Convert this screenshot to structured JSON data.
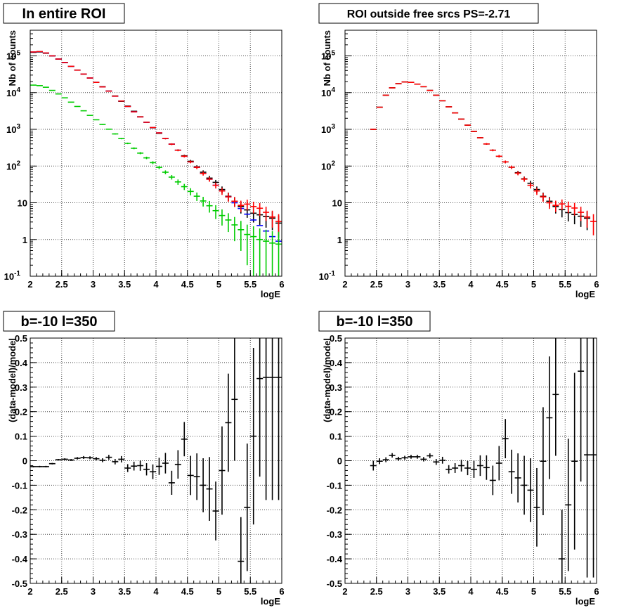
{
  "chart_data": [
    {
      "type": "scatter",
      "title": "In entire ROI",
      "xlabel": "logE",
      "ylabel": "Nb of counts",
      "xlim": [
        2,
        6
      ],
      "ylim": [
        0.1,
        500000
      ],
      "yscale": "log",
      "grid": true,
      "x_ticks": [
        "2",
        "2.5",
        "3",
        "3.5",
        "4",
        "4.5",
        "5",
        "5.5",
        "6"
      ],
      "y_ticks": [
        "10^-1",
        "1",
        "10",
        "10^2",
        "10^3",
        "10^4",
        "10^5"
      ],
      "series": [
        {
          "color": "#000000",
          "x": [
            2.05,
            2.15,
            2.25,
            2.35,
            2.45,
            2.55,
            2.65,
            2.75,
            2.85,
            2.95,
            3.05,
            3.15,
            3.25,
            3.35,
            3.45,
            3.55,
            3.65,
            3.75,
            3.85,
            3.95,
            4.05,
            4.15,
            4.25,
            4.35,
            4.45,
            4.55,
            4.65,
            4.75,
            4.85,
            4.95,
            5.05,
            5.15,
            5.25,
            5.35,
            5.45,
            5.55,
            5.65,
            5.75,
            5.85,
            5.95
          ],
          "y": [
            125000,
            128000,
            118000,
            100000,
            82000,
            66000,
            52000,
            41000,
            32000,
            25000,
            19000,
            14500,
            11000,
            8100,
            5800,
            4300,
            3100,
            2200,
            1560,
            1100,
            780,
            560,
            395,
            270,
            190,
            135,
            95,
            68,
            47,
            36,
            23,
            15,
            11,
            7.9,
            6.4,
            5.2,
            4.7,
            4.2,
            3.8,
            2.8
          ],
          "yerr": [
            350,
            360,
            340,
            320,
            290,
            260,
            230,
            200,
            180,
            160,
            140,
            120,
            105,
            90,
            76,
            66,
            56,
            47,
            40,
            33,
            28,
            24,
            20,
            16,
            14,
            12,
            10,
            8.3,
            6.9,
            6,
            4.8,
            3.9,
            3.3,
            2.8,
            2.5,
            2.3,
            2.2,
            2.1,
            2,
            1.7
          ]
        },
        {
          "color": "#0000ff",
          "x": [
            2.05,
            2.15,
            2.25,
            2.35,
            2.45,
            2.55,
            2.65,
            2.75,
            2.85,
            2.95,
            3.05,
            3.15,
            3.25,
            3.35,
            3.45,
            3.55,
            3.65,
            3.75,
            3.85,
            3.95,
            4.05,
            4.15,
            4.25,
            4.35,
            4.45,
            4.55,
            4.65,
            4.75,
            4.85,
            4.95,
            5.05,
            5.15,
            5.25,
            5.35,
            5.45,
            5.55,
            5.65,
            5.75,
            5.85,
            5.95
          ],
          "y": [
            128000,
            131000,
            120000,
            100000,
            82000,
            66000,
            52000,
            41000,
            32000,
            25000,
            19000,
            14300,
            11000,
            8000,
            5900,
            4200,
            3000,
            2180,
            1560,
            1120,
            800,
            560,
            395,
            270,
            185,
            130,
            92,
            63,
            44,
            30,
            21,
            14.5,
            10,
            7,
            4.9,
            3.4,
            2.4,
            1.7,
            1.2,
            0.9
          ],
          "yerr": [
            0,
            0,
            0,
            0,
            0,
            0,
            0,
            0,
            0,
            0,
            0,
            0,
            0,
            0,
            0,
            0,
            0,
            0,
            0,
            0,
            0,
            0,
            0,
            0,
            0,
            0,
            0,
            0,
            0,
            0,
            0,
            0,
            0,
            0,
            0,
            0,
            0,
            0,
            0,
            0
          ]
        },
        {
          "color": "#ff0000",
          "x": [
            2.05,
            2.15,
            2.25,
            2.35,
            2.45,
            2.55,
            2.65,
            2.75,
            2.85,
            2.95,
            3.05,
            3.15,
            3.25,
            3.35,
            3.45,
            3.55,
            3.65,
            3.75,
            3.85,
            3.95,
            4.05,
            4.15,
            4.25,
            4.35,
            4.45,
            4.55,
            4.65,
            4.75,
            4.85,
            4.95,
            5.05,
            5.15,
            5.25,
            5.35,
            5.45,
            5.55,
            5.65,
            5.75,
            5.85,
            5.95
          ],
          "y": [
            128000,
            131000,
            120000,
            100000,
            82000,
            66000,
            52000,
            41000,
            32000,
            25000,
            19000,
            14300,
            11000,
            8000,
            5900,
            4200,
            3000,
            2180,
            1560,
            1120,
            800,
            560,
            395,
            270,
            185,
            130,
            92,
            63,
            44,
            30,
            21,
            14.5,
            11,
            8.5,
            9.2,
            7.9,
            7.1,
            5.5,
            4.1,
            3.1
          ],
          "yerr": [
            360,
            360,
            350,
            320,
            290,
            260,
            230,
            200,
            180,
            160,
            140,
            120,
            105,
            90,
            77,
            65,
            55,
            47,
            40,
            33,
            28,
            24,
            20,
            16,
            14,
            11,
            9.6,
            7.9,
            6.6,
            5.5,
            4.6,
            3.8,
            3.3,
            2.9,
            3,
            2.8,
            2.7,
            2.3,
            2,
            1.8
          ]
        },
        {
          "color": "#00cc00",
          "x": [
            2.05,
            2.15,
            2.25,
            2.35,
            2.45,
            2.55,
            2.65,
            2.75,
            2.85,
            2.95,
            3.05,
            3.15,
            3.25,
            3.35,
            3.45,
            3.55,
            3.65,
            3.75,
            3.85,
            3.95,
            4.05,
            4.15,
            4.25,
            4.35,
            4.45,
            4.55,
            4.65,
            4.75,
            4.85,
            4.95,
            5.05,
            5.15,
            5.25,
            5.35,
            5.45,
            5.55,
            5.65,
            5.75,
            5.85,
            5.95
          ],
          "y": [
            16000,
            15500,
            14000,
            11500,
            9200,
            7200,
            5500,
            4200,
            3200,
            2400,
            1820,
            1360,
            1010,
            750,
            560,
            415,
            305,
            225,
            167,
            124,
            92,
            68,
            50,
            37,
            27.5,
            20.4,
            15.1,
            11.2,
            8.3,
            6.1,
            4.5,
            3.4,
            2.5,
            1.85,
            1.37,
            1.2,
            1,
            0.9,
            0.8,
            0.75
          ],
          "yerr": [
            130,
            125,
            118,
            107,
            96,
            85,
            74,
            65,
            57,
            49,
            43,
            37,
            32,
            27.4,
            23.7,
            20.4,
            17.5,
            15,
            12.9,
            11.1,
            9.6,
            8.2,
            7.1,
            6.1,
            5.2,
            4.5,
            3.9,
            3.3,
            2.9,
            2.5,
            2.1,
            1.8,
            1.6,
            1.36,
            1.17,
            1.1,
            1,
            0.95,
            0.89,
            0.87
          ]
        }
      ]
    },
    {
      "type": "scatter",
      "title": "ROI outside free srcs PS=-2.71",
      "xlabel": "logE",
      "ylabel": "Nb of counts",
      "xlim": [
        2,
        6
      ],
      "ylim": [
        0.1,
        500000
      ],
      "yscale": "log",
      "grid": true,
      "x_ticks": [
        "2",
        "2.5",
        "3",
        "3.5",
        "4",
        "4.5",
        "5",
        "5.5",
        "6"
      ],
      "y_ticks": [
        "10^-1",
        "1",
        "10",
        "10^2",
        "10^3",
        "10^4",
        "10^5"
      ],
      "series": [
        {
          "color": "#000000",
          "x": [
            2.45,
            2.55,
            2.65,
            2.75,
            2.85,
            2.95,
            3.05,
            3.15,
            3.25,
            3.35,
            3.45,
            3.55,
            3.65,
            3.75,
            3.85,
            3.95,
            4.05,
            4.15,
            4.25,
            4.35,
            4.45,
            4.55,
            4.65,
            4.75,
            4.85,
            4.95,
            5.05,
            5.15,
            5.25,
            5.35,
            5.45,
            5.55,
            5.65,
            5.75,
            5.85
          ],
          "y": [
            1000,
            4000,
            8500,
            13500,
            17500,
            19500,
            19000,
            17000,
            14500,
            11500,
            8500,
            6000,
            4100,
            2800,
            1900,
            1300,
            880,
            590,
            400,
            270,
            185,
            130,
            93,
            66,
            45,
            34,
            23,
            15,
            11,
            7.9,
            6.5,
            5.4,
            4.8,
            4.3,
            3.8
          ],
          "yerr": [
            32,
            63,
            92,
            116,
            132,
            140,
            138,
            130,
            120,
            107,
            92,
            77,
            64,
            53,
            44,
            36,
            30,
            24,
            20,
            16,
            14,
            11,
            9.6,
            8.1,
            6.7,
            5.8,
            4.8,
            3.9,
            3.3,
            2.8,
            2.5,
            2.3,
            2.2,
            2.1,
            2
          ]
        },
        {
          "color": "#ff0000",
          "x": [
            2.45,
            2.55,
            2.65,
            2.75,
            2.85,
            2.95,
            3.05,
            3.15,
            3.25,
            3.35,
            3.45,
            3.55,
            3.65,
            3.75,
            3.85,
            3.95,
            4.05,
            4.15,
            4.25,
            4.35,
            4.45,
            4.55,
            4.65,
            4.75,
            4.85,
            4.95,
            5.05,
            5.15,
            5.25,
            5.35,
            5.45,
            5.55,
            5.65,
            5.75,
            5.85,
            5.95
          ],
          "y": [
            1000,
            4000,
            8500,
            13500,
            17500,
            19500,
            19000,
            17000,
            14500,
            11500,
            8500,
            6000,
            4100,
            2800,
            1900,
            1300,
            880,
            590,
            400,
            270,
            185,
            130,
            93,
            64,
            44,
            30,
            21,
            14.5,
            10,
            8.5,
            9.3,
            8,
            7.2,
            5.5,
            4.1,
            3.1
          ],
          "yerr": [
            32,
            63,
            92,
            116,
            132,
            140,
            138,
            130,
            120,
            107,
            92,
            77,
            64,
            53,
            44,
            36,
            30,
            24,
            20,
            16,
            14,
            11,
            9.6,
            8,
            6.6,
            5.5,
            4.6,
            3.8,
            3.2,
            2.9,
            3,
            2.8,
            2.7,
            2.3,
            2,
            1.8
          ]
        }
      ]
    },
    {
      "type": "scatter",
      "title": "b=-10 l=350",
      "xlabel": "logE",
      "ylabel": "(data-model)/model",
      "xlim": [
        2,
        6
      ],
      "ylim": [
        -0.5,
        0.5
      ],
      "yscale": "linear",
      "grid": true,
      "x_ticks": [
        "2",
        "2.5",
        "3",
        "3.5",
        "4",
        "4.5",
        "5",
        "5.5",
        "6"
      ],
      "y_ticks": [
        "-0.5",
        "-0.4",
        "-0.3",
        "-0.2",
        "-0.1",
        "0",
        "0.1",
        "0.2",
        "0.3",
        "0.4",
        "0.5"
      ],
      "series": [
        {
          "color": "#000000",
          "x": [
            2.05,
            2.15,
            2.25,
            2.35,
            2.45,
            2.55,
            2.65,
            2.75,
            2.85,
            2.95,
            3.05,
            3.15,
            3.25,
            3.35,
            3.45,
            3.55,
            3.65,
            3.75,
            3.85,
            3.95,
            4.05,
            4.15,
            4.25,
            4.35,
            4.45,
            4.55,
            4.65,
            4.75,
            4.85,
            4.95,
            5.05,
            5.15,
            5.25,
            5.35,
            5.45,
            5.55,
            5.65,
            5.75,
            5.85,
            5.95
          ],
          "y": [
            -0.024,
            -0.024,
            -0.024,
            -0.012,
            0.004,
            0.006,
            0.003,
            0.01,
            0.013,
            0.012,
            0.008,
            0.002,
            0.014,
            -0.004,
            0.006,
            -0.03,
            -0.022,
            -0.02,
            -0.035,
            -0.045,
            -0.023,
            -0.01,
            -0.09,
            -0.015,
            0.088,
            -0.06,
            -0.065,
            -0.1,
            -0.115,
            -0.205,
            -0.04,
            0.155,
            0.25,
            -0.41,
            -0.19,
            0.1,
            0.335,
            0.34,
            0.34,
            0.34
          ],
          "yerr": [
            0.003,
            0.003,
            0.003,
            0.003,
            0.003,
            0.004,
            0.004,
            0.005,
            0.006,
            0.006,
            0.007,
            0.008,
            0.01,
            0.011,
            0.013,
            0.016,
            0.018,
            0.021,
            0.025,
            0.03,
            0.035,
            0.042,
            0.049,
            0.058,
            0.07,
            0.08,
            0.095,
            0.11,
            0.13,
            0.12,
            0.18,
            0.2,
            0.25,
            0.18,
            0.26,
            0.36,
            0.4,
            0.5,
            0.5,
            0.5
          ]
        }
      ]
    },
    {
      "type": "scatter",
      "title": "b=-10 l=350",
      "xlabel": "logE",
      "ylabel": "(data-model)/model",
      "xlim": [
        2,
        6
      ],
      "ylim": [
        -0.5,
        0.5
      ],
      "yscale": "linear",
      "grid": true,
      "x_ticks": [
        "2",
        "2.5",
        "3",
        "3.5",
        "4",
        "4.5",
        "5",
        "5.5",
        "6"
      ],
      "y_ticks": [
        "-0.5",
        "-0.4",
        "-0.3",
        "-0.2",
        "-0.1",
        "0",
        "0.1",
        "0.2",
        "0.3",
        "0.4",
        "0.5"
      ],
      "series": [
        {
          "color": "#000000",
          "x": [
            2.45,
            2.55,
            2.65,
            2.75,
            2.85,
            2.95,
            3.05,
            3.15,
            3.25,
            3.35,
            3.45,
            3.55,
            3.65,
            3.75,
            3.85,
            3.95,
            4.05,
            4.15,
            4.25,
            4.35,
            4.45,
            4.55,
            4.65,
            4.75,
            4.85,
            4.95,
            5.05,
            5.15,
            5.25,
            5.35,
            5.45,
            5.55,
            5.65,
            5.75,
            5.85,
            5.95
          ],
          "y": [
            -0.02,
            -0.002,
            0.004,
            0.022,
            0.008,
            0.012,
            0.016,
            0.016,
            0.006,
            0.02,
            -0.005,
            0.002,
            -0.035,
            -0.03,
            -0.02,
            -0.03,
            -0.035,
            -0.02,
            -0.028,
            -0.08,
            -0.01,
            0.09,
            -0.045,
            -0.07,
            -0.1,
            -0.12,
            -0.19,
            -0.002,
            0.175,
            0.27,
            -0.4,
            -0.18,
            -0.002,
            0.365,
            0.024,
            0.024
          ],
          "yerr": [
            0.02,
            0.012,
            0.01,
            0.009,
            0.008,
            0.008,
            0.008,
            0.008,
            0.009,
            0.01,
            0.012,
            0.014,
            0.017,
            0.02,
            0.024,
            0.029,
            0.035,
            0.042,
            0.05,
            0.06,
            0.07,
            0.08,
            0.09,
            0.1,
            0.12,
            0.13,
            0.16,
            0.22,
            0.25,
            0.25,
            0.2,
            0.27,
            0.36,
            0.45,
            0.5,
            0.5
          ]
        }
      ]
    }
  ]
}
